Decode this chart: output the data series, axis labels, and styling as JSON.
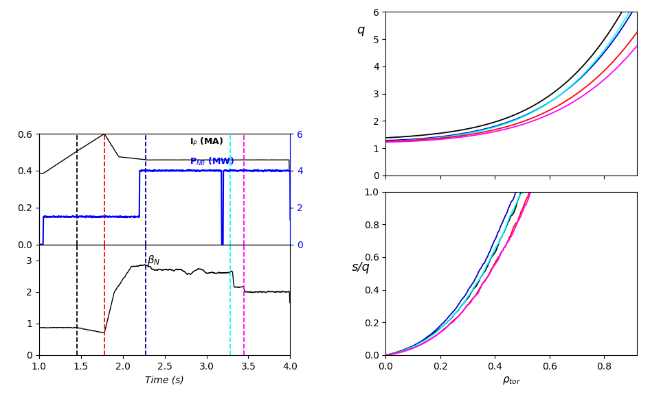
{
  "left_top": {
    "xlim": [
      1.0,
      4.0
    ],
    "ylim_left": [
      0.0,
      0.6
    ],
    "ylim_right": [
      0,
      6
    ],
    "yticks_left": [
      0.0,
      0.2,
      0.4,
      0.6
    ],
    "yticks_right": [
      0,
      2,
      4,
      6
    ],
    "vlines": [
      {
        "x": 1.45,
        "color": "black",
        "ls": "--"
      },
      {
        "x": 1.78,
        "color": "red",
        "ls": "--"
      },
      {
        "x": 2.27,
        "color": "#00008B",
        "ls": "--"
      },
      {
        "x": 3.28,
        "color": "cyan",
        "ls": "--"
      },
      {
        "x": 3.45,
        "color": "magenta",
        "ls": "--"
      }
    ]
  },
  "left_bottom": {
    "xlim": [
      1.0,
      4.0
    ],
    "ylim": [
      0,
      3.5
    ],
    "yticks": [
      0,
      1,
      2,
      3
    ],
    "vlines": [
      {
        "x": 1.45,
        "color": "black",
        "ls": "--"
      },
      {
        "x": 1.78,
        "color": "red",
        "ls": "--"
      },
      {
        "x": 2.27,
        "color": "#00008B",
        "ls": "--"
      },
      {
        "x": 3.28,
        "color": "cyan",
        "ls": "--"
      },
      {
        "x": 3.45,
        "color": "magenta",
        "ls": "--"
      }
    ]
  },
  "right_top": {
    "xlim": [
      0.0,
      0.92
    ],
    "ylim": [
      0,
      6
    ],
    "yticks": [
      0,
      1,
      2,
      3,
      4,
      5,
      6
    ]
  },
  "right_bottom": {
    "xlim": [
      0.0,
      0.92
    ],
    "ylim": [
      0.0,
      1.0
    ],
    "yticks": [
      0.0,
      0.2,
      0.4,
      0.6,
      0.8,
      1.0
    ]
  }
}
